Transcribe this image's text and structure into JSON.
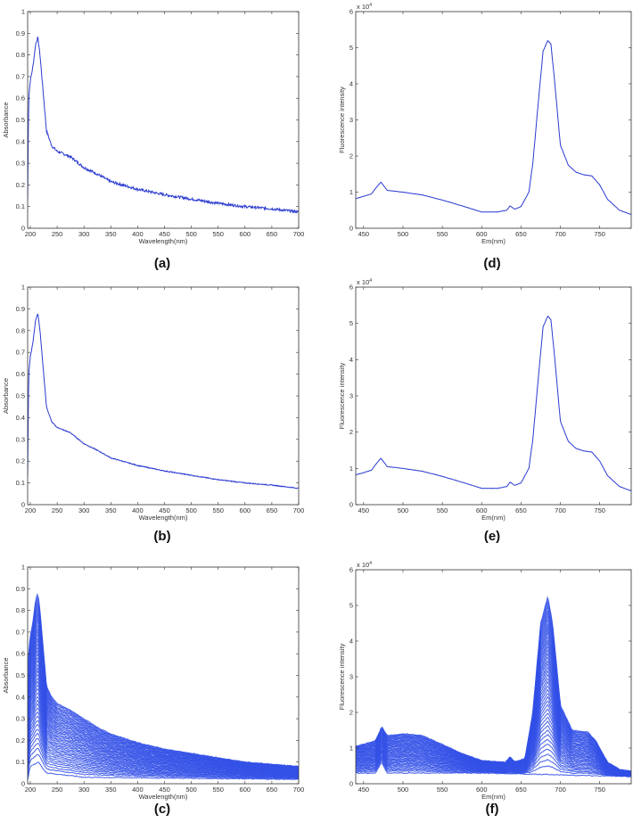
{
  "chart_data": [
    {
      "panel": "(a)",
      "type": "line",
      "xlabel": "Wavelength(nm)",
      "ylabel": "Absorbance",
      "xlim": [
        195,
        700
      ],
      "ylim": [
        0,
        1
      ],
      "xticks": [
        "200",
        "250",
        "300",
        "350",
        "400",
        "450",
        "500",
        "550",
        "600",
        "650",
        "700"
      ],
      "yticks": [
        "0",
        "0.1",
        "0.2",
        "0.3",
        "0.4",
        "0.5",
        "0.6",
        "0.7",
        "0.8",
        "0.9",
        "1"
      ],
      "color": "#2b3bd0",
      "series": [
        {
          "x": [
            195,
            197,
            200,
            205,
            210,
            214,
            218,
            225,
            230,
            240,
            250,
            275,
            300,
            325,
            350,
            400,
            450,
            500,
            550,
            600,
            650,
            700
          ],
          "y": [
            0.13,
            0.6,
            0.68,
            0.75,
            0.85,
            0.88,
            0.8,
            0.6,
            0.45,
            0.38,
            0.355,
            0.33,
            0.28,
            0.25,
            0.215,
            0.18,
            0.155,
            0.135,
            0.115,
            0.1,
            0.09,
            0.075
          ]
        }
      ]
    },
    {
      "panel": "(b)",
      "type": "line",
      "xlabel": "Wavelength(nm)",
      "ylabel": "Absorbance",
      "xlim": [
        195,
        700
      ],
      "ylim": [
        0,
        1
      ],
      "xticks": [
        "200",
        "250",
        "300",
        "350",
        "400",
        "450",
        "500",
        "550",
        "600",
        "650",
        "700"
      ],
      "yticks": [
        "0",
        "0.1",
        "0.2",
        "0.3",
        "0.4",
        "0.5",
        "0.6",
        "0.7",
        "0.8",
        "0.9",
        "1"
      ],
      "color": "#2b3bd0",
      "series": [
        {
          "x": [
            195,
            197,
            200,
            205,
            210,
            214,
            218,
            225,
            230,
            240,
            250,
            275,
            300,
            325,
            350,
            400,
            450,
            500,
            550,
            600,
            650,
            700
          ],
          "y": [
            0.13,
            0.6,
            0.68,
            0.75,
            0.85,
            0.88,
            0.8,
            0.6,
            0.45,
            0.38,
            0.355,
            0.33,
            0.28,
            0.25,
            0.215,
            0.18,
            0.155,
            0.135,
            0.115,
            0.1,
            0.09,
            0.075
          ]
        }
      ]
    },
    {
      "panel": "(c)",
      "type": "line",
      "xlabel": "Wavelength(nm)",
      "ylabel": "Absorbance",
      "xlim": [
        195,
        700
      ],
      "ylim": [
        0,
        1
      ],
      "xticks": [
        "200",
        "250",
        "300",
        "350",
        "400",
        "450",
        "500",
        "550",
        "600",
        "650",
        "700"
      ],
      "yticks": [
        "0",
        "0.1",
        "0.2",
        "0.3",
        "0.4",
        "0.5",
        "0.6",
        "0.7",
        "0.8",
        "0.9",
        "1"
      ],
      "color": "#3350e6",
      "envelope": {
        "upper": {
          "x": [
            195,
            197,
            200,
            205,
            210,
            214,
            218,
            225,
            230,
            240,
            250,
            275,
            300,
            325,
            350,
            400,
            450,
            500,
            550,
            600,
            650,
            700
          ],
          "y": [
            0.13,
            0.6,
            0.68,
            0.75,
            0.85,
            0.88,
            0.8,
            0.6,
            0.45,
            0.4,
            0.37,
            0.34,
            0.3,
            0.26,
            0.23,
            0.19,
            0.16,
            0.14,
            0.12,
            0.1,
            0.09,
            0.08
          ]
        },
        "lower": {
          "x": [
            195,
            200,
            215,
            230,
            300,
            700
          ],
          "y": [
            0.02,
            0.08,
            0.1,
            0.05,
            0.03,
            0.02
          ]
        }
      }
    },
    {
      "panel": "(d)",
      "type": "line",
      "xlabel": "Em(nm)",
      "ylabel": "Fluorescence intensity",
      "multiplier": "x 10",
      "multiplier_exp": "4",
      "xlim": [
        440,
        790
      ],
      "ylim": [
        0,
        6
      ],
      "xticks": [
        "450",
        "500",
        "550",
        "600",
        "650",
        "700",
        "750"
      ],
      "yticks": [
        "0",
        "1",
        "2",
        "3",
        "4",
        "5",
        "6"
      ],
      "color": "#2b3bd0",
      "series": [
        {
          "x": [
            440,
            460,
            465,
            472,
            480,
            500,
            525,
            550,
            575,
            600,
            620,
            632,
            636,
            642,
            650,
            660,
            665,
            672,
            678,
            684,
            688,
            693,
            700,
            710,
            720,
            730,
            740,
            750,
            760,
            775,
            790
          ],
          "y": [
            0.82,
            0.95,
            1.1,
            1.28,
            1.05,
            1.0,
            0.92,
            0.78,
            0.62,
            0.45,
            0.45,
            0.5,
            0.62,
            0.53,
            0.6,
            1.0,
            1.8,
            3.5,
            4.9,
            5.2,
            5.1,
            4.0,
            2.3,
            1.75,
            1.55,
            1.48,
            1.45,
            1.2,
            0.8,
            0.5,
            0.38
          ]
        }
      ]
    },
    {
      "panel": "(e)",
      "type": "line",
      "xlabel": "Em(nm)",
      "ylabel": "Fluorescence intensity",
      "multiplier": "x 10",
      "multiplier_exp": "4",
      "xlim": [
        440,
        790
      ],
      "ylim": [
        0,
        6
      ],
      "xticks": [
        "450",
        "500",
        "550",
        "600",
        "650",
        "700",
        "750"
      ],
      "yticks": [
        "0",
        "1",
        "2",
        "3",
        "4",
        "5",
        "6"
      ],
      "color": "#2b3bd0",
      "series": [
        {
          "x": [
            440,
            460,
            465,
            472,
            480,
            500,
            525,
            550,
            575,
            600,
            620,
            632,
            636,
            642,
            650,
            660,
            665,
            672,
            678,
            684,
            688,
            693,
            700,
            710,
            720,
            730,
            740,
            750,
            760,
            775,
            790
          ],
          "y": [
            0.82,
            0.95,
            1.1,
            1.28,
            1.05,
            1.0,
            0.92,
            0.78,
            0.62,
            0.45,
            0.45,
            0.5,
            0.62,
            0.53,
            0.6,
            1.0,
            1.8,
            3.5,
            4.9,
            5.2,
            5.1,
            4.0,
            2.3,
            1.75,
            1.55,
            1.48,
            1.45,
            1.2,
            0.8,
            0.5,
            0.38
          ]
        }
      ]
    },
    {
      "panel": "(f)",
      "type": "line",
      "xlabel": "Em(nm)",
      "ylabel": "Fluorescence intensity",
      "multiplier": "x 10",
      "multiplier_exp": "4",
      "xlim": [
        440,
        790
      ],
      "ylim": [
        0,
        6
      ],
      "xticks": [
        "450",
        "500",
        "550",
        "600",
        "650",
        "700",
        "750"
      ],
      "yticks": [
        "0",
        "1",
        "2",
        "3",
        "4",
        "5",
        "6"
      ],
      "color": "#3350e6",
      "envelope": {
        "upper": {
          "x": [
            440,
            465,
            473,
            480,
            500,
            525,
            550,
            575,
            600,
            630,
            636,
            642,
            655,
            665,
            675,
            684,
            690,
            700,
            715,
            735,
            745,
            760,
            775,
            790
          ],
          "y": [
            1.05,
            1.2,
            1.6,
            1.35,
            1.4,
            1.35,
            1.1,
            0.85,
            0.65,
            0.6,
            0.75,
            0.62,
            0.7,
            2.0,
            4.5,
            5.25,
            4.5,
            2.2,
            1.5,
            1.45,
            1.2,
            0.6,
            0.4,
            0.35
          ]
        },
        "lower": {
          "x": [
            440,
            465,
            473,
            480,
            600,
            700,
            790
          ],
          "y": [
            0.3,
            0.3,
            0.6,
            0.3,
            0.3,
            0.25,
            0.2
          ]
        }
      }
    }
  ]
}
